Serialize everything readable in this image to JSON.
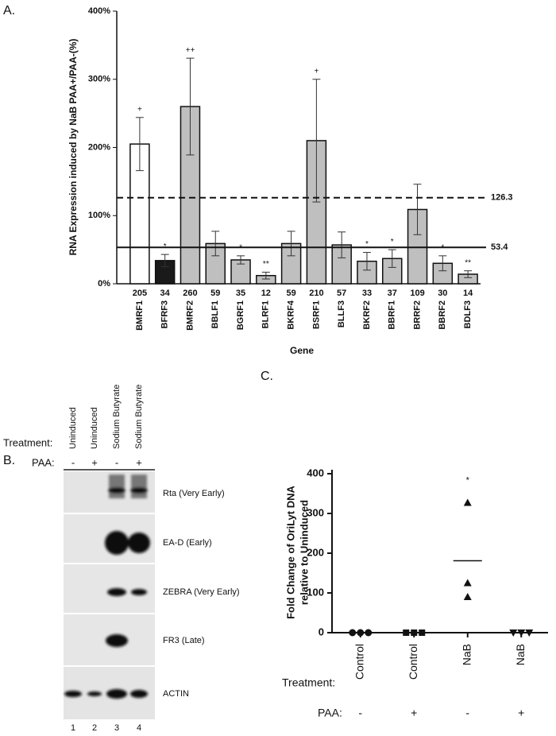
{
  "chart_data": [
    {
      "type": "bar",
      "title": "A.",
      "ylabel": "RNA Expression induced by NaB PAA+/PAA-(%)",
      "xlabel": "Gene",
      "categories": [
        "BMRF1",
        "BFRF3",
        "BMRF2",
        "BBLF1",
        "BGRF1",
        "BLRF1",
        "BKRF4",
        "BSRF1",
        "BLLF3",
        "BKRF2",
        "BBRF1",
        "BRRF2",
        "BBRF2",
        "BDLF3"
      ],
      "values": [
        205,
        34,
        260,
        59,
        35,
        12,
        59,
        210,
        57,
        33,
        37,
        109,
        30,
        14
      ],
      "errors": [
        39,
        9,
        71,
        18,
        6,
        5,
        18,
        90,
        19,
        13,
        13,
        37,
        11,
        5
      ],
      "colors": [
        "#ffffff",
        "#1a1a1a",
        "#bfbfbf",
        "#bfbfbf",
        "#bfbfbf",
        "#bfbfbf",
        "#bfbfbf",
        "#bfbfbf",
        "#bfbfbf",
        "#bfbfbf",
        "#bfbfbf",
        "#bfbfbf",
        "#bfbfbf",
        "#bfbfbf"
      ],
      "significance": [
        "+",
        "*",
        "++",
        null,
        "*",
        "**",
        null,
        "+",
        null,
        "*",
        "*",
        null,
        "*",
        "**"
      ],
      "reference_lines": [
        {
          "value": 126.3,
          "style": "dashed"
        },
        {
          "value": 53.4,
          "style": "solid"
        }
      ],
      "ylim": [
        0,
        400
      ],
      "yticks": [
        {
          "value": 0,
          "label": "0%"
        },
        {
          "value": 100,
          "label": "100%"
        },
        {
          "value": 200,
          "label": "200%"
        },
        {
          "value": 300,
          "label": "300%"
        },
        {
          "value": 400,
          "label": "400%"
        }
      ]
    },
    {
      "type": "dot",
      "title": "C.",
      "ylabel": [
        "Fold Change of OriLyt DNA",
        "relative to Uninduced"
      ],
      "categories": [
        "Control",
        "Control",
        "NaB",
        "NaB"
      ],
      "values": [
        [
          0,
          0,
          0
        ],
        [
          0,
          0,
          0
        ],
        [
          90,
          125,
          327
        ],
        [
          0,
          0,
          0
        ]
      ],
      "means": [
        0,
        0,
        181,
        0
      ],
      "markers": [
        "circle",
        "square",
        "triangle",
        "triangle-down"
      ],
      "significance": [
        null,
        null,
        "*",
        null
      ],
      "row_labels": [
        "Treatment:",
        "PAA:"
      ],
      "paa": [
        "-",
        "+",
        "-",
        "+"
      ],
      "ylim": [
        0,
        410
      ],
      "yticks": [
        0,
        100,
        200,
        300,
        400
      ]
    }
  ],
  "blot": {
    "title": "B.",
    "lane_headers": [
      "Uninduced",
      "Uninduced",
      "Sodium Butyrate",
      "Sodium Butyrate"
    ],
    "row_labels": [
      "Treatment:",
      "PAA:"
    ],
    "paa": [
      "-",
      "+",
      "-",
      "+"
    ],
    "bands": [
      "Rta (Very Early)",
      "EA-D (Early)",
      "ZEBRA (Very Early)",
      "FR3 (Late)",
      "ACTIN"
    ],
    "lanes": [
      "1",
      "2",
      "3",
      "4"
    ]
  }
}
